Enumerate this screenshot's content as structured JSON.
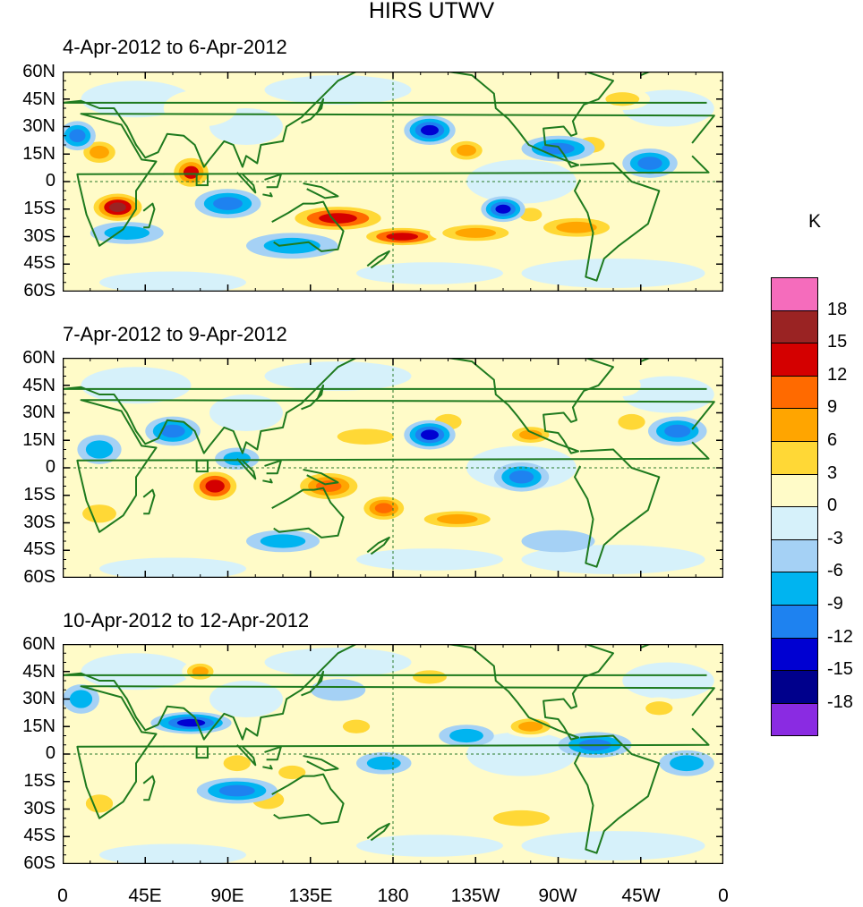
{
  "title": "HIRS UTWV",
  "units": "K",
  "panels": [
    {
      "label": "4-Apr-2012 to 6-Apr-2012"
    },
    {
      "label": "7-Apr-2012 to 9-Apr-2012"
    },
    {
      "label": "10-Apr-2012 to 12-Apr-2012"
    }
  ],
  "y_ticks": [
    "60N",
    "45N",
    "30N",
    "15N",
    "0",
    "15S",
    "30S",
    "45S",
    "60S"
  ],
  "x_ticks": [
    "0",
    "45E",
    "90E",
    "135E",
    "180",
    "135W",
    "90W",
    "45W",
    "0"
  ],
  "colorbar": {
    "labels": [
      "18",
      "15",
      "12",
      "9",
      "6",
      "3",
      "0",
      "-3",
      "-6",
      "-9",
      "-12",
      "-15",
      "-18"
    ],
    "colors": [
      "#f56cbc",
      "#9a2323",
      "#d40000",
      "#ff6a00",
      "#ffa500",
      "#ffd836",
      "#fffbc8",
      "#d6f1fa",
      "#a5d1f5",
      "#00b4f0",
      "#1e82f0",
      "#0000d2",
      "#00008c",
      "#8a2be2"
    ]
  }
}
